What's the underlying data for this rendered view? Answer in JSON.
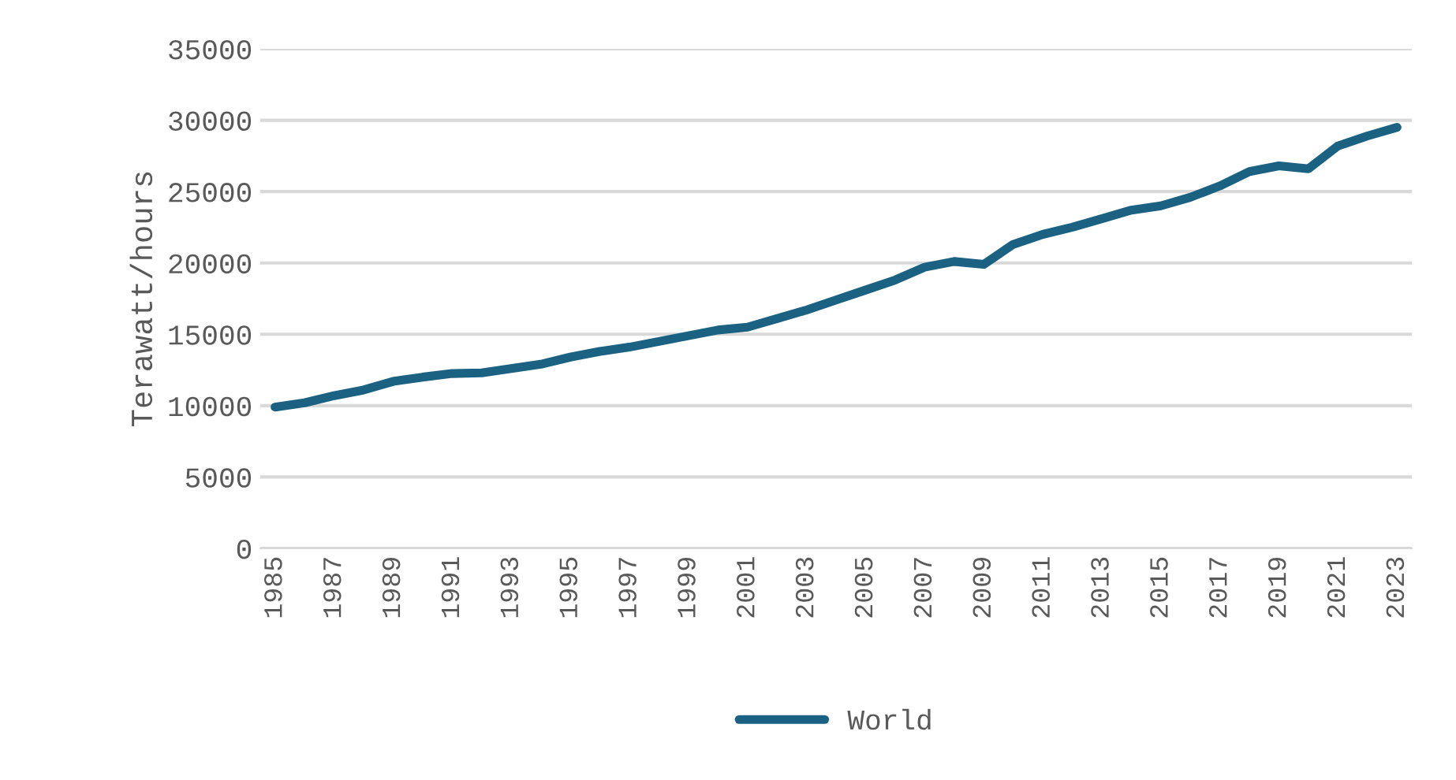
{
  "chart_data": {
    "type": "line",
    "ylabel": "Terawatt/hours",
    "categories": [
      "1985",
      null,
      "1987",
      null,
      "1989",
      null,
      "1991",
      null,
      "1993",
      null,
      "1995",
      null,
      "1997",
      null,
      "1999",
      null,
      "2001",
      null,
      "2003",
      null,
      "2005",
      null,
      "2007",
      null,
      "2009",
      null,
      "2011",
      null,
      "2013",
      null,
      "2015",
      null,
      "2017",
      null,
      "2019",
      null,
      "2021",
      null,
      "2023"
    ],
    "series": [
      {
        "name": "World",
        "color": "#1b6182",
        "values": [
          9900,
          10200,
          10700,
          11100,
          11700,
          12000,
          12250,
          12300,
          12600,
          12900,
          13400,
          13800,
          14100,
          14500,
          14900,
          15300,
          15500,
          16100,
          16700,
          17400,
          18100,
          18800,
          19700,
          20100,
          19900,
          21300,
          22000,
          22500,
          23100,
          23700,
          24000,
          24600,
          25400,
          26400,
          26800,
          26600,
          28200,
          28900,
          29500
        ]
      }
    ],
    "ylim": [
      0,
      35000
    ],
    "yticks": [
      0,
      5000,
      10000,
      15000,
      20000,
      25000,
      30000,
      35000
    ],
    "grid": "y",
    "legend": "bottom"
  }
}
